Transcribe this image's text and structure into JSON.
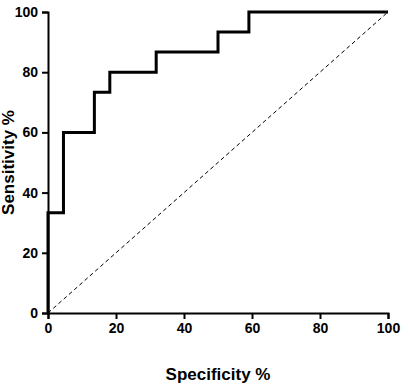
{
  "chart_data": {
    "type": "line",
    "xlabel": "Specificity %",
    "ylabel": "Sensitivity %",
    "xlim": [
      0,
      100
    ],
    "xticks": [
      0,
      20,
      40,
      60,
      80,
      100
    ],
    "ylim": [
      0,
      100
    ],
    "yticks": [
      0,
      20,
      40,
      60,
      80,
      100
    ],
    "grid": false,
    "series": [
      {
        "color": "#000000",
        "line_style": "solid",
        "x": [
          0,
          0,
          4.55,
          4.55,
          13.64,
          13.64,
          18.18,
          18.18,
          31.82,
          31.82,
          50,
          50,
          59.09,
          59.09,
          100
        ],
        "values": [
          0,
          33.33,
          33.33,
          60,
          60,
          73.33,
          73.33,
          80,
          80,
          86.67,
          86.67,
          93.33,
          93.33,
          100,
          100
        ]
      },
      {
        "color": "#000000",
        "line_style": "dashed",
        "x": [
          0,
          100
        ],
        "values": [
          0,
          100
        ]
      }
    ]
  }
}
